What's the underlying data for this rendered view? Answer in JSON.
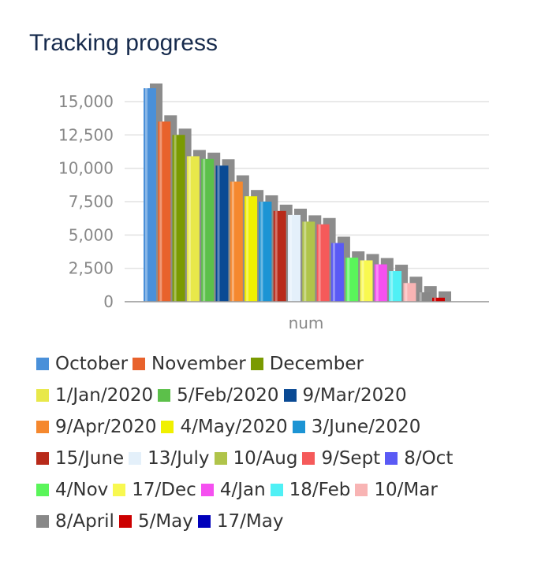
{
  "header": {
    "title": "Tracking progress"
  },
  "chart_data": {
    "type": "bar",
    "xlabel": "num",
    "ylabel": "",
    "categories": [
      "num"
    ],
    "ylim": [
      0,
      16000
    ],
    "yticks": [
      0,
      2500,
      5000,
      7500,
      10000,
      12500,
      15000
    ],
    "ytick_labels": [
      "0",
      "2,500",
      "5,000",
      "7,500",
      "10,000",
      "12,500",
      "15,000"
    ],
    "grid": true,
    "legend_position": "bottom",
    "series": [
      {
        "name": "October",
        "values": [
          16000
        ],
        "color": "#4a90d9"
      },
      {
        "name": "November",
        "values": [
          13500
        ],
        "color": "#e8622c"
      },
      {
        "name": "December",
        "values": [
          12500
        ],
        "color": "#7a9a01"
      },
      {
        "name": "1/Jan/2020",
        "values": [
          10900
        ],
        "color": "#e8e84a"
      },
      {
        "name": "5/Feb/2020",
        "values": [
          10700
        ],
        "color": "#5cc04a"
      },
      {
        "name": "9/Mar/2020",
        "values": [
          10200
        ],
        "color": "#0a4a94"
      },
      {
        "name": "9/Apr/2020",
        "values": [
          9000
        ],
        "color": "#f5882e"
      },
      {
        "name": "4/May/2020",
        "values": [
          7900
        ],
        "color": "#f0f000"
      },
      {
        "name": "3/June/2020",
        "values": [
          7500
        ],
        "color": "#1c94d4"
      },
      {
        "name": "15/June",
        "values": [
          6800
        ],
        "color": "#b82a1a"
      },
      {
        "name": "13/July",
        "values": [
          6500
        ],
        "color": "#e4f0fa"
      },
      {
        "name": "10/Aug",
        "values": [
          6000
        ],
        "color": "#b0c44a"
      },
      {
        "name": "9/Sept",
        "values": [
          5800
        ],
        "color": "#f55a5a"
      },
      {
        "name": "8/Oct",
        "values": [
          4400
        ],
        "color": "#5a5af5"
      },
      {
        "name": "4/Nov",
        "values": [
          3300
        ],
        "color": "#5af55a"
      },
      {
        "name": "17/Dec",
        "values": [
          3100
        ],
        "color": "#f8f850"
      },
      {
        "name": "4/Jan",
        "values": [
          2800
        ],
        "color": "#f550f0"
      },
      {
        "name": "18/Feb",
        "values": [
          2300
        ],
        "color": "#50f0f5"
      },
      {
        "name": "10/Mar",
        "values": [
          1400
        ],
        "color": "#f8b4b4"
      },
      {
        "name": "8/April",
        "values": [
          700
        ],
        "color": "#888888"
      },
      {
        "name": "5/May",
        "values": [
          300
        ],
        "color": "#cc0000"
      },
      {
        "name": "17/May",
        "values": [
          0
        ],
        "color": "#0000bb"
      }
    ]
  }
}
